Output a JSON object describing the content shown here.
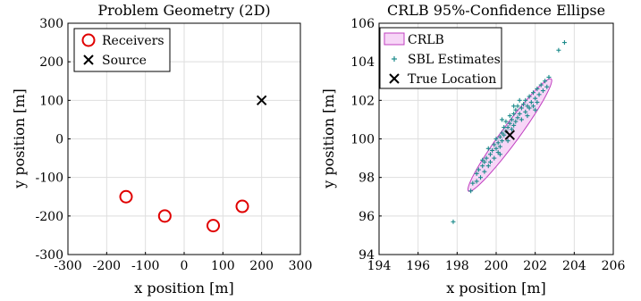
{
  "chart_data": [
    {
      "type": "scatter",
      "title": "Problem Geometry (2D)",
      "xlabel": "x position [m]",
      "ylabel": "y position [m]",
      "xlim": [
        -300,
        300
      ],
      "ylim": [
        -300,
        300
      ],
      "xticks": [
        -300,
        -200,
        -100,
        0,
        100,
        200,
        300
      ],
      "yticks": [
        -300,
        -200,
        -100,
        0,
        100,
        200,
        300
      ],
      "grid": true,
      "legend_position": "top-left",
      "series": [
        {
          "name": "Receivers",
          "marker": "circle",
          "color": "#e00000",
          "points": [
            [
              -150,
              -150
            ],
            [
              -50,
              -200
            ],
            [
              75,
              -225
            ],
            [
              150,
              -175
            ]
          ]
        },
        {
          "name": "Source",
          "marker": "x",
          "color": "#000000",
          "points": [
            [
              200,
              100
            ]
          ]
        }
      ]
    },
    {
      "type": "scatter",
      "title": "CRLB 95%-Confidence Ellipse",
      "xlabel": "x position [m]",
      "ylabel": "y position [m]",
      "xlim": [
        194,
        206
      ],
      "ylim": [
        94,
        106
      ],
      "xticks": [
        194,
        196,
        198,
        200,
        202,
        204,
        206
      ],
      "yticks": [
        94,
        96,
        98,
        100,
        102,
        104,
        106
      ],
      "grid": true,
      "legend_position": "top-left",
      "ellipse": {
        "name": "CRLB",
        "center": [
          200.7,
          100.2
        ],
        "semi_major": 3.6,
        "semi_minor": 0.45,
        "angle_deg": 54,
        "fill": "#f7d6f7",
        "stroke": "#c040c0"
      },
      "series": [
        {
          "name": "SBL Estimates",
          "marker": "plus",
          "color": "#1a8a8a",
          "points": [
            [
              197.8,
              95.7
            ],
            [
              198.7,
              97.3
            ],
            [
              198.8,
              97.7
            ],
            [
              199.0,
              97.8
            ],
            [
              199.0,
              98.2
            ],
            [
              199.1,
              98.4
            ],
            [
              199.2,
              98.0
            ],
            [
              199.3,
              98.6
            ],
            [
              199.4,
              98.8
            ],
            [
              199.4,
              98.3
            ],
            [
              199.5,
              99.0
            ],
            [
              199.6,
              98.6
            ],
            [
              199.7,
              99.2
            ],
            [
              199.7,
              98.8
            ],
            [
              199.8,
              99.4
            ],
            [
              199.9,
              99.0
            ],
            [
              199.9,
              99.7
            ],
            [
              200.0,
              99.5
            ],
            [
              200.0,
              100.0
            ],
            [
              200.1,
              99.3
            ],
            [
              200.1,
              99.8
            ],
            [
              200.2,
              100.1
            ],
            [
              200.2,
              99.6
            ],
            [
              200.3,
              100.3
            ],
            [
              200.3,
              99.9
            ],
            [
              200.4,
              100.6
            ],
            [
              200.4,
              100.2
            ],
            [
              200.5,
              100.4
            ],
            [
              200.5,
              100.9
            ],
            [
              200.6,
              99.9
            ],
            [
              200.6,
              100.6
            ],
            [
              200.7,
              100.8
            ],
            [
              200.7,
              101.2
            ],
            [
              200.8,
              100.5
            ],
            [
              200.8,
              101.0
            ],
            [
              200.9,
              101.3
            ],
            [
              200.9,
              100.7
            ],
            [
              201.0,
              101.5
            ],
            [
              201.0,
              100.9
            ],
            [
              201.1,
              101.1
            ],
            [
              201.1,
              101.7
            ],
            [
              201.2,
              101.3
            ],
            [
              201.3,
              101.6
            ],
            [
              201.3,
              101.0
            ],
            [
              201.4,
              101.8
            ],
            [
              201.5,
              101.4
            ],
            [
              201.5,
              102.0
            ],
            [
              201.6,
              101.7
            ],
            [
              201.7,
              102.2
            ],
            [
              201.7,
              101.6
            ],
            [
              201.8,
              101.9
            ],
            [
              201.9,
              102.4
            ],
            [
              201.9,
              101.7
            ],
            [
              202.0,
              102.1
            ],
            [
              202.1,
              102.6
            ],
            [
              202.1,
              101.9
            ],
            [
              202.2,
              102.3
            ],
            [
              202.3,
              102.8
            ],
            [
              202.4,
              102.5
            ],
            [
              202.5,
              103.0
            ],
            [
              202.6,
              102.7
            ],
            [
              202.7,
              103.2
            ],
            [
              203.2,
              104.6
            ],
            [
              203.5,
              105.0
            ],
            [
              200.2,
              99.2
            ],
            [
              199.6,
              99.5
            ],
            [
              201.2,
              102.0
            ],
            [
              200.9,
              101.7
            ],
            [
              201.6,
              101.2
            ],
            [
              199.3,
              98.9
            ],
            [
              202.0,
              101.5
            ],
            [
              200.3,
              101.0
            ]
          ]
        },
        {
          "name": "True Location",
          "marker": "x",
          "color": "#000000",
          "points": [
            [
              200.7,
              100.2
            ]
          ]
        }
      ]
    }
  ]
}
